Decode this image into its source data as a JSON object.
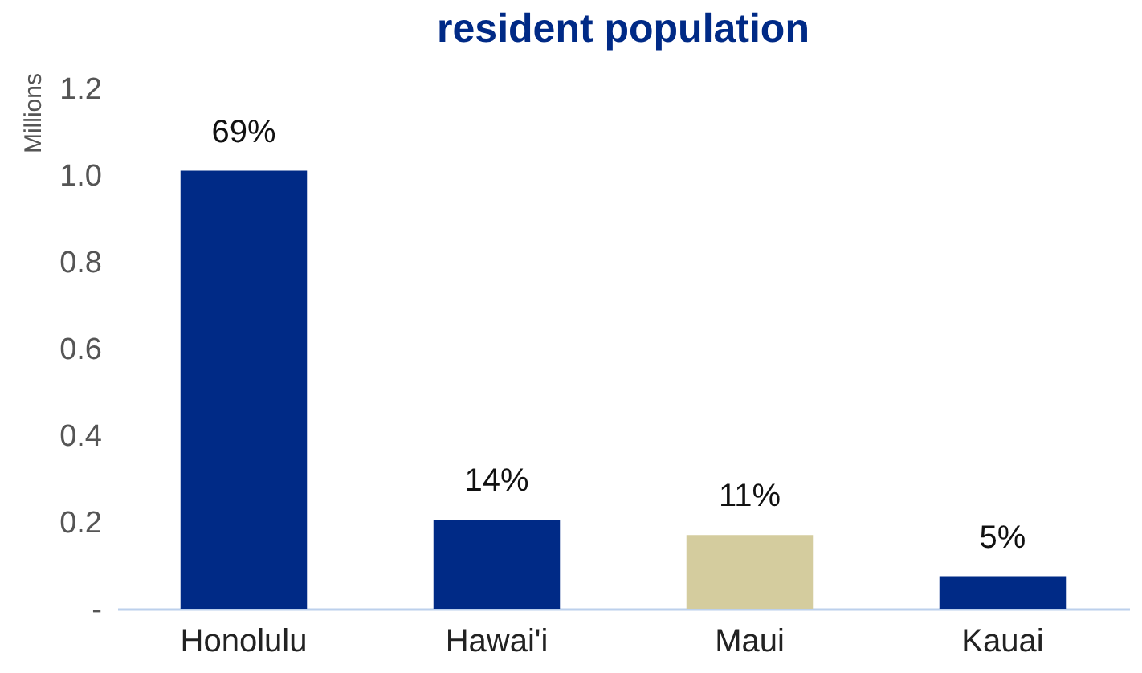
{
  "chart_data": {
    "type": "bar",
    "title": "resident population",
    "ylabel": "Millions",
    "categories": [
      "Honolulu",
      "Hawai'i",
      "Maui",
      "Kauai"
    ],
    "values": [
      1.01,
      0.205,
      0.17,
      0.075
    ],
    "colors": [
      "#002a86",
      "#002a86",
      "#d4cc9e",
      "#002a86"
    ],
    "annotations": [
      {
        "text": "69%",
        "x": "Honolulu",
        "y": 1.01
      },
      {
        "text": "14%",
        "x": "Hawai'i",
        "y": 0.205
      },
      {
        "text": "11%",
        "x": "Maui",
        "y": 0.17
      },
      {
        "text": "5%",
        "x": "Kauai",
        "y": 0.075
      }
    ],
    "ylim": [
      0,
      1.2
    ],
    "yticks": [
      {
        "value": 0,
        "label": "-"
      },
      0.2,
      0.4,
      0.6,
      0.8,
      {
        "value": 1,
        "label": "1.0"
      },
      1.2
    ],
    "grid": false
  }
}
